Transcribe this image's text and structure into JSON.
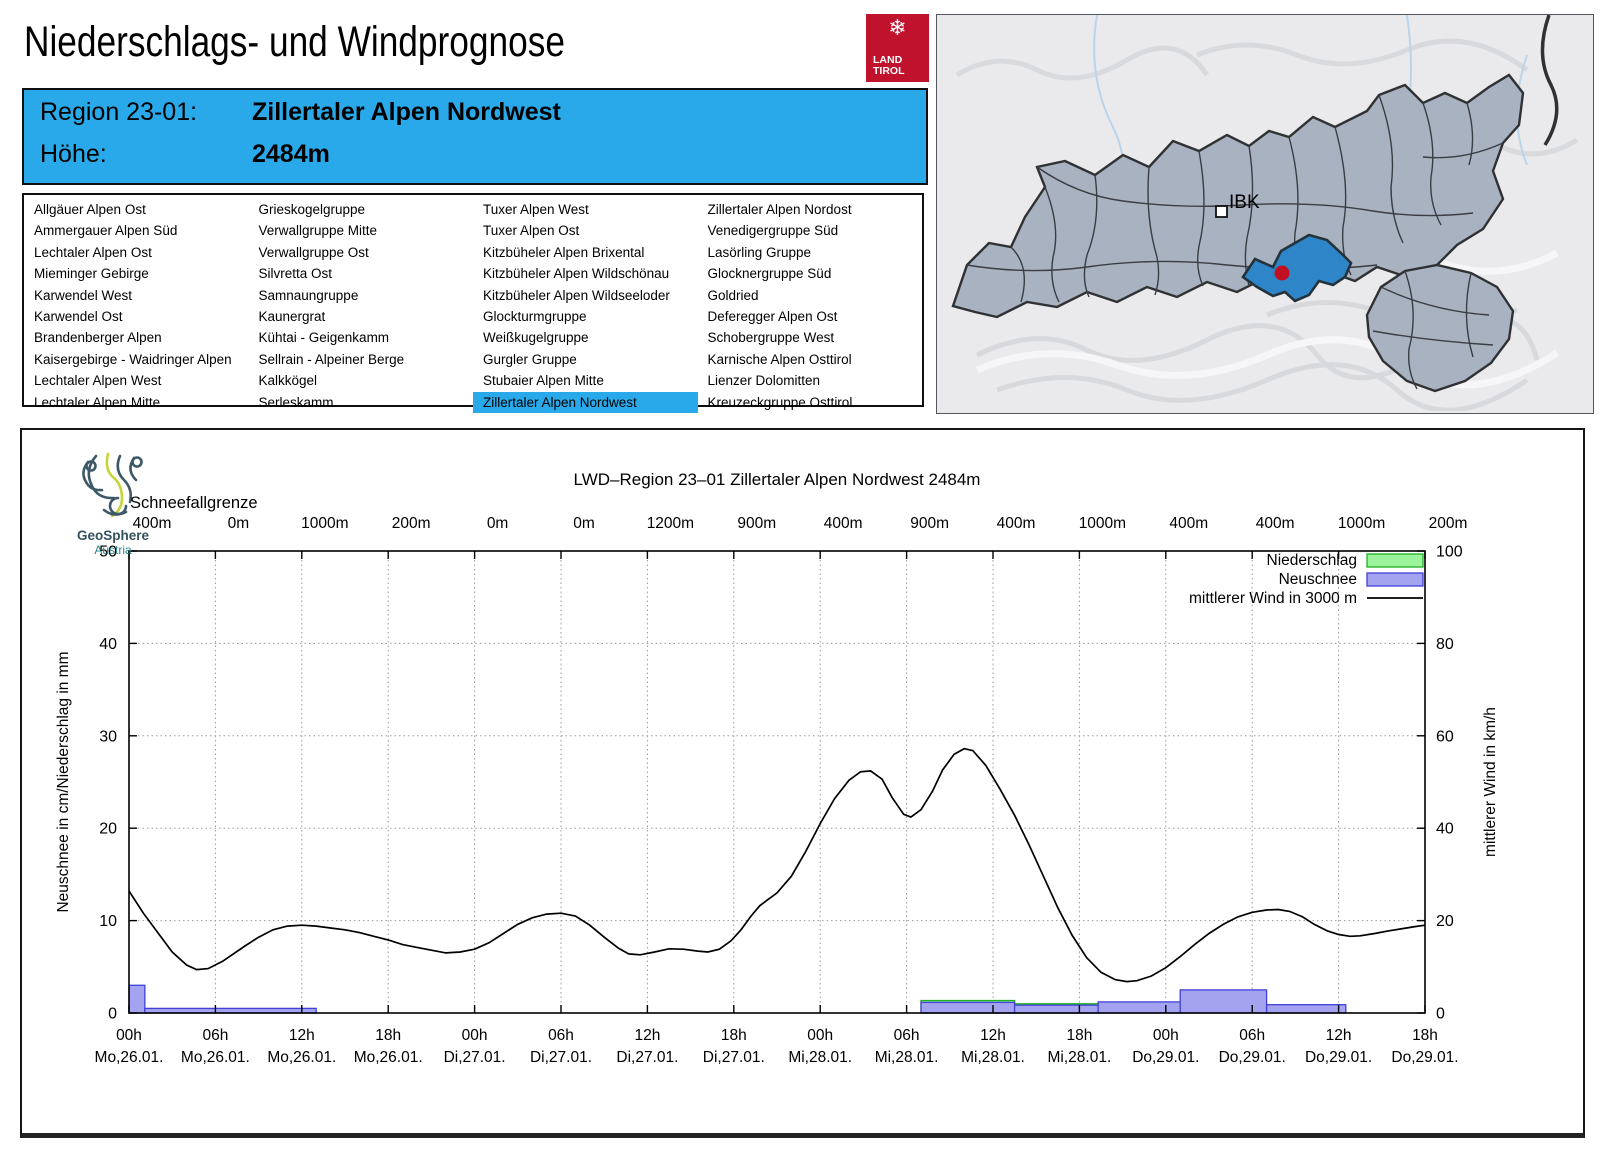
{
  "header": {
    "title": "Niederschlags- und Windprognose",
    "logo_line1": "LAND",
    "logo_line2": "TIROL",
    "logo_color": "#c0122d"
  },
  "region_info": {
    "region_label": "Region 23-01:",
    "region_value": "Zillertaler Alpen Nordwest",
    "hoehe_label": "Höhe:",
    "hoehe_value": "2484m",
    "box_color": "#29a9e9"
  },
  "region_list": {
    "selected": "Zillertaler Alpen Nordwest",
    "columns": [
      [
        "Allgäuer Alpen Ost",
        "Ammergauer Alpen Süd",
        "Lechtaler Alpen Ost",
        "Mieminger Gebirge",
        "Karwendel West",
        "Karwendel Ost",
        "Brandenberger Alpen",
        "Kaisergebirge - Waidringer Alpen",
        "Lechtaler Alpen West",
        "Lechtaler Alpen Mitte"
      ],
      [
        "Grieskogelgruppe",
        "Verwallgruppe Mitte",
        "Verwallgruppe Ost",
        "Silvretta Ost",
        "Samnaungruppe",
        "Kaunergrat",
        "Kühtai - Geigenkamm",
        "Sellrain - Alpeiner Berge",
        "Kalkkögel",
        "Serleskamm"
      ],
      [
        "Tuxer Alpen West",
        "Tuxer Alpen Ost",
        "Kitzbüheler Alpen Brixental",
        "Kitzbüheler Alpen Wildschönau",
        "Kitzbüheler Alpen Wildseeloder",
        "Glockturmgruppe",
        "Weißkugelgruppe",
        "Gurgler Gruppe",
        "Stubaier Alpen Mitte",
        "Zillertaler Alpen Nordwest"
      ],
      [
        "Zillertaler Alpen Nordost",
        "Venedigergruppe Süd",
        "Lasörling Gruppe",
        "Glocknergruppe Süd",
        "Goldried",
        "Deferegger Alpen Ost",
        "Schobergruppe West",
        "Karnische Alpen Osttirol",
        "Lienzer Dolomitten",
        "Kreuzeckgruppe Osttirol"
      ]
    ]
  },
  "map": {
    "city_label": "IBK",
    "region_fill": "#a9b2c1",
    "highlight_fill": "#2e86c8",
    "marker_color": "#c11022"
  },
  "geosphere": {
    "name": "GeoSphere",
    "sub": "Austria"
  },
  "chart": {
    "title": "LWD–Region 23–01 Zillertaler Alpen Nordwest 2484m",
    "snowline_label": "Schneefallgrenze",
    "legend": [
      {
        "label": "Niederschlag",
        "type": "box",
        "fill": "#9bf49b",
        "stroke": "#1fae1f"
      },
      {
        "label": "Neuschnee",
        "type": "box",
        "fill": "#a3a3f0",
        "stroke": "#4040d8"
      },
      {
        "label": "mittlerer Wind in 3000 m",
        "type": "line",
        "stroke": "#000000"
      }
    ]
  },
  "chart_data": {
    "type": "composite",
    "title": "LWD–Region 23–01 Zillertaler Alpen Nordwest 2484m",
    "x_hours_range": [
      0,
      90
    ],
    "left_axis": {
      "label": "Neuschnee in cm/Niederschlag in mm",
      "ticks": [
        0,
        10,
        20,
        30,
        40,
        50
      ],
      "ylim": [
        0,
        50
      ]
    },
    "right_axis": {
      "label": "mittlerer Wind in km/h",
      "ticks": [
        0,
        20,
        40,
        60,
        80,
        100
      ],
      "ylim": [
        0,
        100
      ]
    },
    "x_ticks": [
      {
        "hour": 0,
        "time": "00h",
        "date": "Mo,26.01."
      },
      {
        "hour": 6,
        "time": "06h",
        "date": "Mo,26.01."
      },
      {
        "hour": 12,
        "time": "12h",
        "date": "Mo,26.01."
      },
      {
        "hour": 18,
        "time": "18h",
        "date": "Mo,26.01."
      },
      {
        "hour": 24,
        "time": "00h",
        "date": "Di,27.01."
      },
      {
        "hour": 30,
        "time": "06h",
        "date": "Di,27.01."
      },
      {
        "hour": 36,
        "time": "12h",
        "date": "Di,27.01."
      },
      {
        "hour": 42,
        "time": "18h",
        "date": "Di,27.01."
      },
      {
        "hour": 48,
        "time": "00h",
        "date": "Mi,28.01."
      },
      {
        "hour": 54,
        "time": "06h",
        "date": "Mi,28.01."
      },
      {
        "hour": 60,
        "time": "12h",
        "date": "Mi,28.01."
      },
      {
        "hour": 66,
        "time": "18h",
        "date": "Mi,28.01."
      },
      {
        "hour": 72,
        "time": "00h",
        "date": "Do,29.01."
      },
      {
        "hour": 78,
        "time": "06h",
        "date": "Do,29.01."
      },
      {
        "hour": 84,
        "time": "12h",
        "date": "Do,29.01."
      },
      {
        "hour": 90,
        "time": "18h",
        "date": "Do,29.01."
      }
    ],
    "snowline_values": [
      "400m",
      "0m",
      "1000m",
      "200m",
      "0m",
      "0m",
      "1200m",
      "900m",
      "400m",
      "900m",
      "400m",
      "1000m",
      "400m",
      "400m",
      "1000m",
      "200m"
    ],
    "wind_line_kmh": [
      [
        0,
        26.4
      ],
      [
        1,
        21.6
      ],
      [
        2,
        17.4
      ],
      [
        3,
        13.2
      ],
      [
        4,
        10.4
      ],
      [
        4.7,
        9.4
      ],
      [
        5.5,
        9.6
      ],
      [
        6.5,
        11.2
      ],
      [
        8,
        14.4
      ],
      [
        9,
        16.4
      ],
      [
        10,
        18
      ],
      [
        11,
        18.8
      ],
      [
        12,
        19
      ],
      [
        13,
        18.8
      ],
      [
        14,
        18.4
      ],
      [
        15,
        18
      ],
      [
        16,
        17.4
      ],
      [
        17,
        16.6
      ],
      [
        18,
        15.8
      ],
      [
        19,
        14.8
      ],
      [
        20,
        14.2
      ],
      [
        21,
        13.6
      ],
      [
        22,
        13
      ],
      [
        23,
        13.2
      ],
      [
        24,
        13.8
      ],
      [
        25,
        15.2
      ],
      [
        26,
        17.2
      ],
      [
        27,
        19.2
      ],
      [
        28,
        20.6
      ],
      [
        29,
        21.4
      ],
      [
        30,
        21.6
      ],
      [
        31,
        21
      ],
      [
        32,
        19
      ],
      [
        33,
        16.4
      ],
      [
        34,
        14
      ],
      [
        34.7,
        12.8
      ],
      [
        35.5,
        12.6
      ],
      [
        36.5,
        13.2
      ],
      [
        37.5,
        13.9
      ],
      [
        38.5,
        13.8
      ],
      [
        39.5,
        13.4
      ],
      [
        40.2,
        13.2
      ],
      [
        41,
        13.8
      ],
      [
        41.8,
        15.6
      ],
      [
        42.5,
        18
      ],
      [
        43.2,
        21
      ],
      [
        43.8,
        23.2
      ],
      [
        44.3,
        24.4
      ],
      [
        45,
        26
      ],
      [
        46,
        29.6
      ],
      [
        47,
        35
      ],
      [
        48,
        41
      ],
      [
        49,
        46.4
      ],
      [
        50,
        50.4
      ],
      [
        50.8,
        52.2
      ],
      [
        51.5,
        52.4
      ],
      [
        52.3,
        50.6
      ],
      [
        53,
        46.6
      ],
      [
        53.8,
        43
      ],
      [
        54.3,
        42.4
      ],
      [
        55,
        44
      ],
      [
        55.8,
        48
      ],
      [
        56.5,
        52.6
      ],
      [
        57.3,
        56
      ],
      [
        58,
        57.2
      ],
      [
        58.6,
        56.8
      ],
      [
        59.5,
        53.6
      ],
      [
        60.5,
        48.4
      ],
      [
        61.5,
        42.8
      ],
      [
        62.5,
        36.4
      ],
      [
        63.5,
        29.6
      ],
      [
        64.5,
        22.8
      ],
      [
        65.5,
        16.8
      ],
      [
        66.5,
        12
      ],
      [
        67.5,
        8.8
      ],
      [
        68.5,
        7.2
      ],
      [
        69.3,
        6.8
      ],
      [
        70,
        7
      ],
      [
        71,
        8
      ],
      [
        72,
        9.8
      ],
      [
        73,
        12.2
      ],
      [
        74,
        14.8
      ],
      [
        75,
        17.2
      ],
      [
        76,
        19.2
      ],
      [
        77,
        20.8
      ],
      [
        78,
        21.8
      ],
      [
        79,
        22.3
      ],
      [
        79.8,
        22.4
      ],
      [
        80.6,
        22
      ],
      [
        81.5,
        20.8
      ],
      [
        82.3,
        19.2
      ],
      [
        83.2,
        17.8
      ],
      [
        84,
        17
      ],
      [
        84.8,
        16.6
      ],
      [
        85.5,
        16.7
      ],
      [
        86.5,
        17.2
      ],
      [
        87.5,
        17.8
      ],
      [
        88.5,
        18.3
      ],
      [
        89.3,
        18.7
      ],
      [
        90,
        19
      ]
    ],
    "neuschnee_bars_cm": [
      [
        0,
        1.1,
        3.0
      ],
      [
        1.1,
        13,
        0.5
      ],
      [
        55,
        61.5,
        1.15
      ],
      [
        61.5,
        67.3,
        0.85
      ],
      [
        67.3,
        73,
        1.2
      ],
      [
        73,
        79,
        2.5
      ],
      [
        79,
        84.5,
        0.9
      ]
    ],
    "niederschlag_bars_mm": [
      [
        55,
        61.5,
        1.35
      ],
      [
        61.5,
        67.3,
        1.0
      ]
    ]
  }
}
